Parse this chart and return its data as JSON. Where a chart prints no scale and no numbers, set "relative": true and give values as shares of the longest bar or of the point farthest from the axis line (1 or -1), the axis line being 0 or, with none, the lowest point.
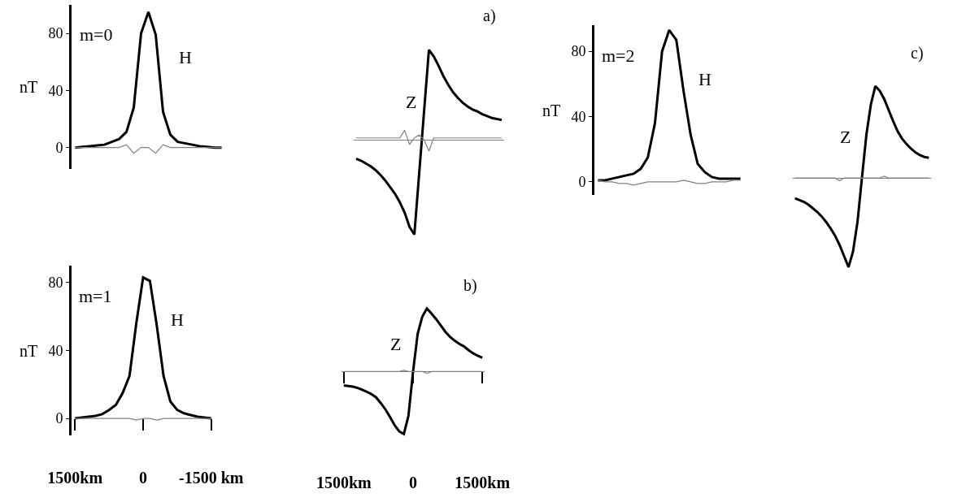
{
  "chart_data": [
    {
      "type": "line",
      "ylabel": "nT",
      "ylim": [
        -15,
        100
      ],
      "yticks": [
        0,
        40,
        80
      ],
      "categories": [
        null,
        null,
        null,
        null,
        null,
        null,
        null,
        null,
        null,
        null,
        null,
        null,
        null,
        null,
        null,
        null,
        null,
        null,
        null,
        null,
        null
      ],
      "annotations": [
        "m=0",
        "H"
      ],
      "series": [
        {
          "color": "#000000",
          "values": [
            0,
            0.5,
            1,
            1.5,
            2,
            4,
            6,
            11,
            28,
            80,
            95,
            79,
            25,
            9,
            4,
            3,
            2,
            1,
            0.5,
            0,
            0
          ]
        },
        {
          "color": "#808080",
          "values": [
            0,
            0,
            0,
            0,
            0,
            0,
            0,
            2,
            -4,
            0,
            0,
            -4,
            2,
            0,
            0,
            0,
            0,
            0,
            0,
            0,
            0
          ]
        }
      ]
    },
    {
      "type": "line",
      "relative": true,
      "categories": [
        null,
        null,
        null,
        null,
        null,
        null,
        null,
        null,
        null,
        null,
        null,
        null,
        null,
        null,
        null,
        null,
        null,
        null,
        null,
        null,
        null,
        null,
        null,
        null,
        null,
        null,
        null,
        null,
        null,
        null,
        null
      ],
      "annotations": [
        "a)",
        "Z"
      ],
      "series": [
        {
          "color": "#000000",
          "values": [
            -0.2,
            -0.22,
            -0.25,
            -0.28,
            -0.32,
            -0.37,
            -0.43,
            -0.5,
            -0.57,
            -0.66,
            -0.77,
            -0.92,
            -1,
            -0.35,
            0.3,
            0.95,
            0.88,
            0.78,
            0.67,
            0.58,
            0.5,
            0.44,
            0.39,
            0.35,
            0.32,
            0.3,
            0.27,
            0.25,
            0.23,
            0.22,
            0.21
          ]
        },
        {
          "color": "#808080",
          "values": [
            0.02,
            0.02,
            0.02,
            0.02,
            0.02,
            0.02,
            0.02,
            0.02,
            0.02,
            0.02,
            0.1,
            -0.05,
            0.02,
            0.05,
            0,
            -0.12,
            0.02,
            0.02,
            0.02,
            0.02,
            0.02,
            0.02,
            0.02,
            0.02,
            0.02,
            0.02,
            0.02,
            0.02,
            0.02,
            0.02,
            0.02
          ]
        }
      ]
    },
    {
      "type": "line",
      "ylabel": "nT",
      "ylim": [
        -8,
        96
      ],
      "yticks": [
        0,
        40,
        80
      ],
      "categories": [
        null,
        null,
        null,
        null,
        null,
        null,
        null,
        null,
        null,
        null,
        null,
        null,
        null,
        null,
        null,
        null,
        null,
        null,
        null,
        null,
        null
      ],
      "annotations": [
        "m=2",
        "H"
      ],
      "series": [
        {
          "color": "#000000",
          "values": [
            1,
            1,
            2,
            3,
            4,
            5,
            8,
            15,
            36,
            80,
            93,
            87,
            56,
            29,
            11,
            6,
            3,
            2,
            2,
            2,
            2
          ]
        },
        {
          "color": "#808080",
          "values": [
            1,
            0,
            0,
            -1,
            -1,
            -2,
            -1,
            0,
            0,
            0,
            0,
            0,
            1,
            0,
            -1,
            -1,
            0,
            0,
            0,
            1,
            1
          ]
        }
      ]
    },
    {
      "type": "line",
      "relative": true,
      "categories": [
        null,
        null,
        null,
        null,
        null,
        null,
        null,
        null,
        null,
        null,
        null,
        null,
        null,
        null,
        null,
        null,
        null,
        null,
        null,
        null,
        null,
        null,
        null,
        null,
        null,
        null,
        null,
        null,
        null,
        null,
        null
      ],
      "annotations": [
        "c)",
        "Z"
      ],
      "series": [
        {
          "color": "#000000",
          "values": [
            -0.22,
            -0.24,
            -0.26,
            -0.29,
            -0.33,
            -0.37,
            -0.42,
            -0.48,
            -0.55,
            -0.63,
            -0.73,
            -0.85,
            -0.97,
            -0.8,
            -0.48,
            0,
            0.47,
            0.8,
            1,
            0.95,
            0.86,
            0.74,
            0.62,
            0.51,
            0.43,
            0.37,
            0.32,
            0.28,
            0.25,
            0.23,
            0.22
          ]
        },
        {
          "color": "#808080",
          "values": [
            0,
            0,
            0,
            0,
            0,
            0,
            0,
            0,
            0,
            0,
            -0.03,
            0,
            0,
            0,
            0,
            0,
            0,
            0,
            0,
            0,
            0.02,
            0,
            0,
            0,
            0,
            0,
            0,
            0,
            0,
            0,
            0
          ]
        }
      ]
    },
    {
      "type": "line",
      "ylabel": "nT",
      "ylim": [
        -10,
        90
      ],
      "yticks": [
        0,
        40,
        80
      ],
      "categories": [
        "1500km",
        null,
        null,
        null,
        null,
        null,
        null,
        null,
        null,
        null,
        "0",
        null,
        null,
        null,
        null,
        null,
        null,
        null,
        null,
        null,
        "-1500 km"
      ],
      "annotations": [
        "m=1",
        "H"
      ],
      "series": [
        {
          "color": "#000000",
          "values": [
            0,
            0.5,
            1,
            1.5,
            2.5,
            5,
            8,
            15,
            25,
            56,
            83,
            81,
            55,
            25,
            10,
            5,
            3,
            2,
            1,
            0.5,
            0
          ]
        },
        {
          "color": "#808080",
          "values": [
            0,
            0,
            0,
            0,
            0,
            0,
            0,
            0,
            0,
            -1,
            0,
            0,
            -1,
            0,
            0,
            0,
            0,
            0,
            0,
            0,
            0
          ]
        }
      ]
    },
    {
      "type": "line",
      "relative": true,
      "categories": [
        "1500km",
        null,
        null,
        null,
        null,
        null,
        null,
        null,
        null,
        null,
        null,
        null,
        null,
        null,
        null,
        "0",
        null,
        null,
        null,
        null,
        null,
        null,
        null,
        null,
        null,
        null,
        null,
        null,
        null,
        null,
        "1500km"
      ],
      "annotations": [
        "b)",
        "Z"
      ],
      "series": [
        {
          "color": "#000000",
          "values": [
            -0.22,
            -0.23,
            -0.24,
            -0.26,
            -0.29,
            -0.32,
            -0.36,
            -0.41,
            -0.5,
            -0.6,
            -0.72,
            -0.85,
            -0.95,
            -0.99,
            -0.7,
            0,
            0.6,
            0.87,
            1,
            0.92,
            0.83,
            0.73,
            0.63,
            0.55,
            0.49,
            0.44,
            0.4,
            0.34,
            0.29,
            0.25,
            0.22
          ]
        },
        {
          "color": "#808080",
          "values": [
            0,
            0,
            0,
            0,
            0,
            0,
            0,
            0,
            0,
            0,
            0,
            0,
            0,
            0.02,
            0,
            0,
            0,
            0,
            -0.03,
            0,
            0,
            0,
            0,
            0,
            0,
            0,
            0,
            0,
            0,
            0,
            0
          ]
        }
      ]
    }
  ]
}
